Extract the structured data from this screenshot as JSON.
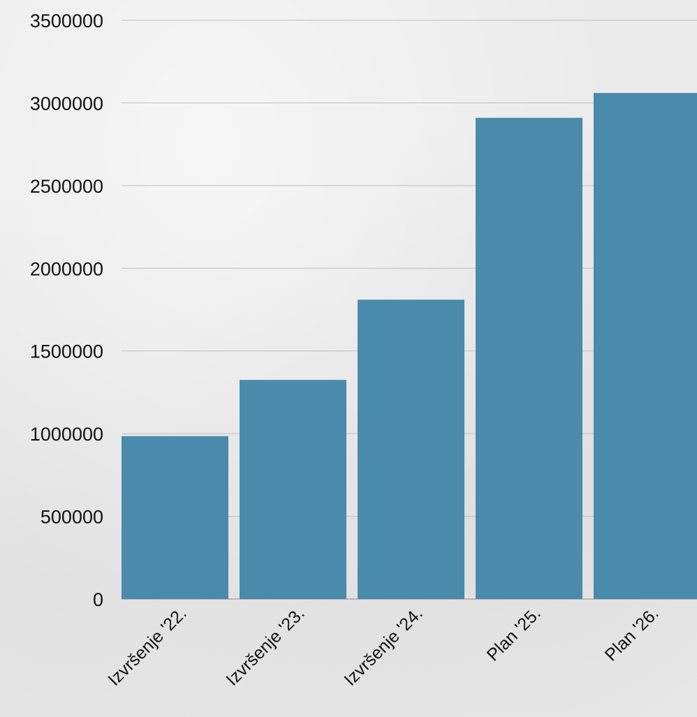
{
  "chart_data": {
    "type": "bar",
    "categories": [
      "Izvršenje '22.",
      "Izvršenje '23.",
      "Izvršenje '24.",
      "Plan '25.",
      "Plan '26."
    ],
    "values": [
      985000,
      1325000,
      1810000,
      2910000,
      3060000
    ],
    "title": "",
    "xlabel": "",
    "ylabel": "",
    "ylim": [
      0,
      3500000
    ],
    "yticks": [
      "0",
      "500000",
      "1000000",
      "1500000",
      "2000000",
      "2500000",
      "3000000",
      "3500000"
    ],
    "grid": true,
    "legend": "none",
    "bar_color": "#4a8aaa"
  }
}
